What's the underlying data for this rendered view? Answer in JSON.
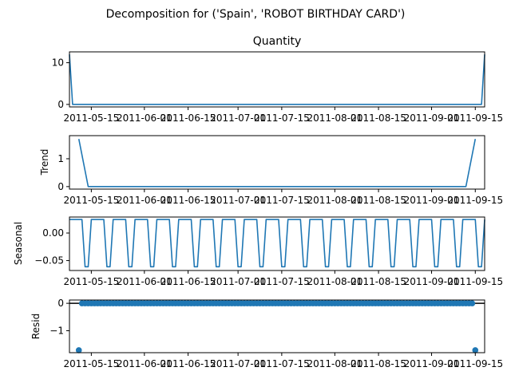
{
  "suptitle": "Decomposition for ('Spain', 'ROBOT BIRTHDAY CARD')",
  "chart_data": [
    {
      "type": "line",
      "title": "Quantity",
      "ylabel": "",
      "x_range": [
        "2011-05-08",
        "2011-09-18"
      ],
      "ylim": [
        -0.6,
        12.6
      ],
      "yticks": [
        0,
        10
      ],
      "x_tick_labels": [
        "2011-05-15",
        "2011-06-01",
        "2011-06-15",
        "2011-07-01",
        "2011-07-15",
        "2011-08-01",
        "2011-08-15",
        "2011-09-01",
        "2011-09-15"
      ],
      "series": [
        {
          "points": [
            [
              "2011-05-08",
              12
            ],
            [
              "2011-05-09",
              0
            ],
            [
              "2011-09-17",
              0
            ],
            [
              "2011-09-18",
              12
            ]
          ]
        }
      ]
    },
    {
      "type": "line",
      "title": "",
      "ylabel": "Trend",
      "x_range": [
        "2011-05-08",
        "2011-09-18"
      ],
      "ylim": [
        -0.09,
        1.83
      ],
      "yticks": [
        0,
        1
      ],
      "x_tick_labels": [
        "2011-05-15",
        "2011-06-01",
        "2011-06-15",
        "2011-07-01",
        "2011-07-15",
        "2011-08-01",
        "2011-08-15",
        "2011-09-01",
        "2011-09-15"
      ],
      "series": [
        {
          "points": [
            [
              "2011-05-11",
              1.71
            ],
            [
              "2011-05-14",
              0
            ],
            [
              "2011-09-12",
              0
            ],
            [
              "2011-09-15",
              1.71
            ]
          ]
        }
      ]
    },
    {
      "type": "line",
      "title": "",
      "ylabel": "Seasonal",
      "x_range": [
        "2011-05-08",
        "2011-09-18"
      ],
      "ylim": [
        -0.068,
        0.029
      ],
      "yticks": [
        -0.05,
        0.0
      ],
      "ytick_labels": [
        "−0.05",
        "0.00"
      ],
      "x_tick_labels": [
        "2011-05-15",
        "2011-06-01",
        "2011-06-15",
        "2011-07-01",
        "2011-07-15",
        "2011-08-01",
        "2011-08-15",
        "2011-09-01",
        "2011-09-15"
      ],
      "period_days": 7,
      "weekly_pattern": [
        0.0245,
        0.0245,
        0.0245,
        0.0245,
        0.0245,
        -0.0612,
        -0.0612
      ]
    },
    {
      "type": "scatter",
      "title": "",
      "ylabel": "Resid",
      "x_range": [
        "2011-05-08",
        "2011-09-18"
      ],
      "ylim": [
        -1.8,
        0.12
      ],
      "yticks": [
        -1,
        0
      ],
      "ytick_labels": [
        "−1",
        "0"
      ],
      "x_tick_labels": [
        "2011-05-15",
        "2011-06-01",
        "2011-06-15",
        "2011-07-01",
        "2011-07-15",
        "2011-08-01",
        "2011-08-15",
        "2011-09-01",
        "2011-09-15"
      ],
      "outliers": [
        [
          "2011-05-11",
          -1.71
        ],
        [
          "2011-09-15",
          -1.71
        ]
      ],
      "baseline_value": 0
    }
  ]
}
